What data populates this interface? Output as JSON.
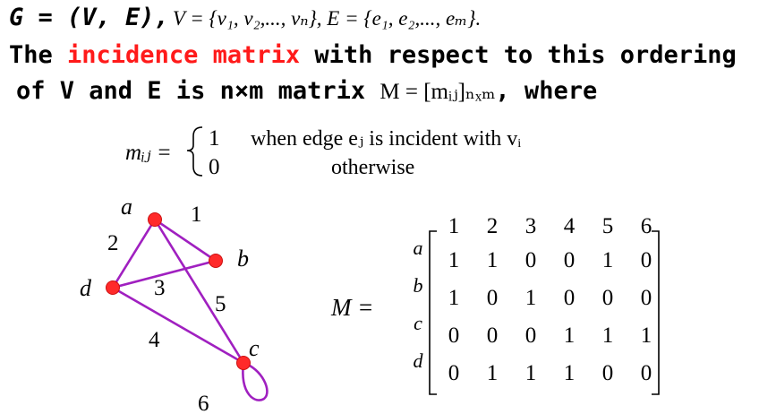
{
  "header": {
    "g_label": "G = (V, E),",
    "v_set": "V = {v₁, v₂,..., vₙ}, E = {e₁, e₂,..., eₘ}.",
    "line2_prefix": "The ",
    "line2_highlight": "incidence matrix",
    "line2_suffix": " with respect to this ordering",
    "line3_prefix": "of V and E is n×m matrix ",
    "line3_math": "M = [mᵢⱼ]ₙₓₘ",
    "line3_suffix": ",  where"
  },
  "definition": {
    "lhs": "mᵢⱼ =",
    "case1_value": "1",
    "case1_text": "when edge eⱼ is incident with vᵢ",
    "case2_value": "0",
    "case2_text": "otherwise"
  },
  "graph": {
    "vertices": [
      "a",
      "b",
      "c",
      "d"
    ],
    "edge_labels": [
      "1",
      "2",
      "3",
      "4",
      "5",
      "6"
    ],
    "colors": {
      "vertex": "#ff2a2a",
      "edge": "#a020c0"
    }
  },
  "matrix": {
    "lhs": "M =",
    "col_headers": [
      "1",
      "2",
      "3",
      "4",
      "5",
      "6"
    ],
    "row_labels": [
      "a",
      "b",
      "c",
      "d"
    ],
    "rows": [
      [
        "1",
        "1",
        "0",
        "0",
        "1",
        "0"
      ],
      [
        "1",
        "0",
        "1",
        "0",
        "0",
        "0"
      ],
      [
        "0",
        "0",
        "0",
        "1",
        "1",
        "1"
      ],
      [
        "0",
        "1",
        "1",
        "1",
        "0",
        "0"
      ]
    ]
  }
}
